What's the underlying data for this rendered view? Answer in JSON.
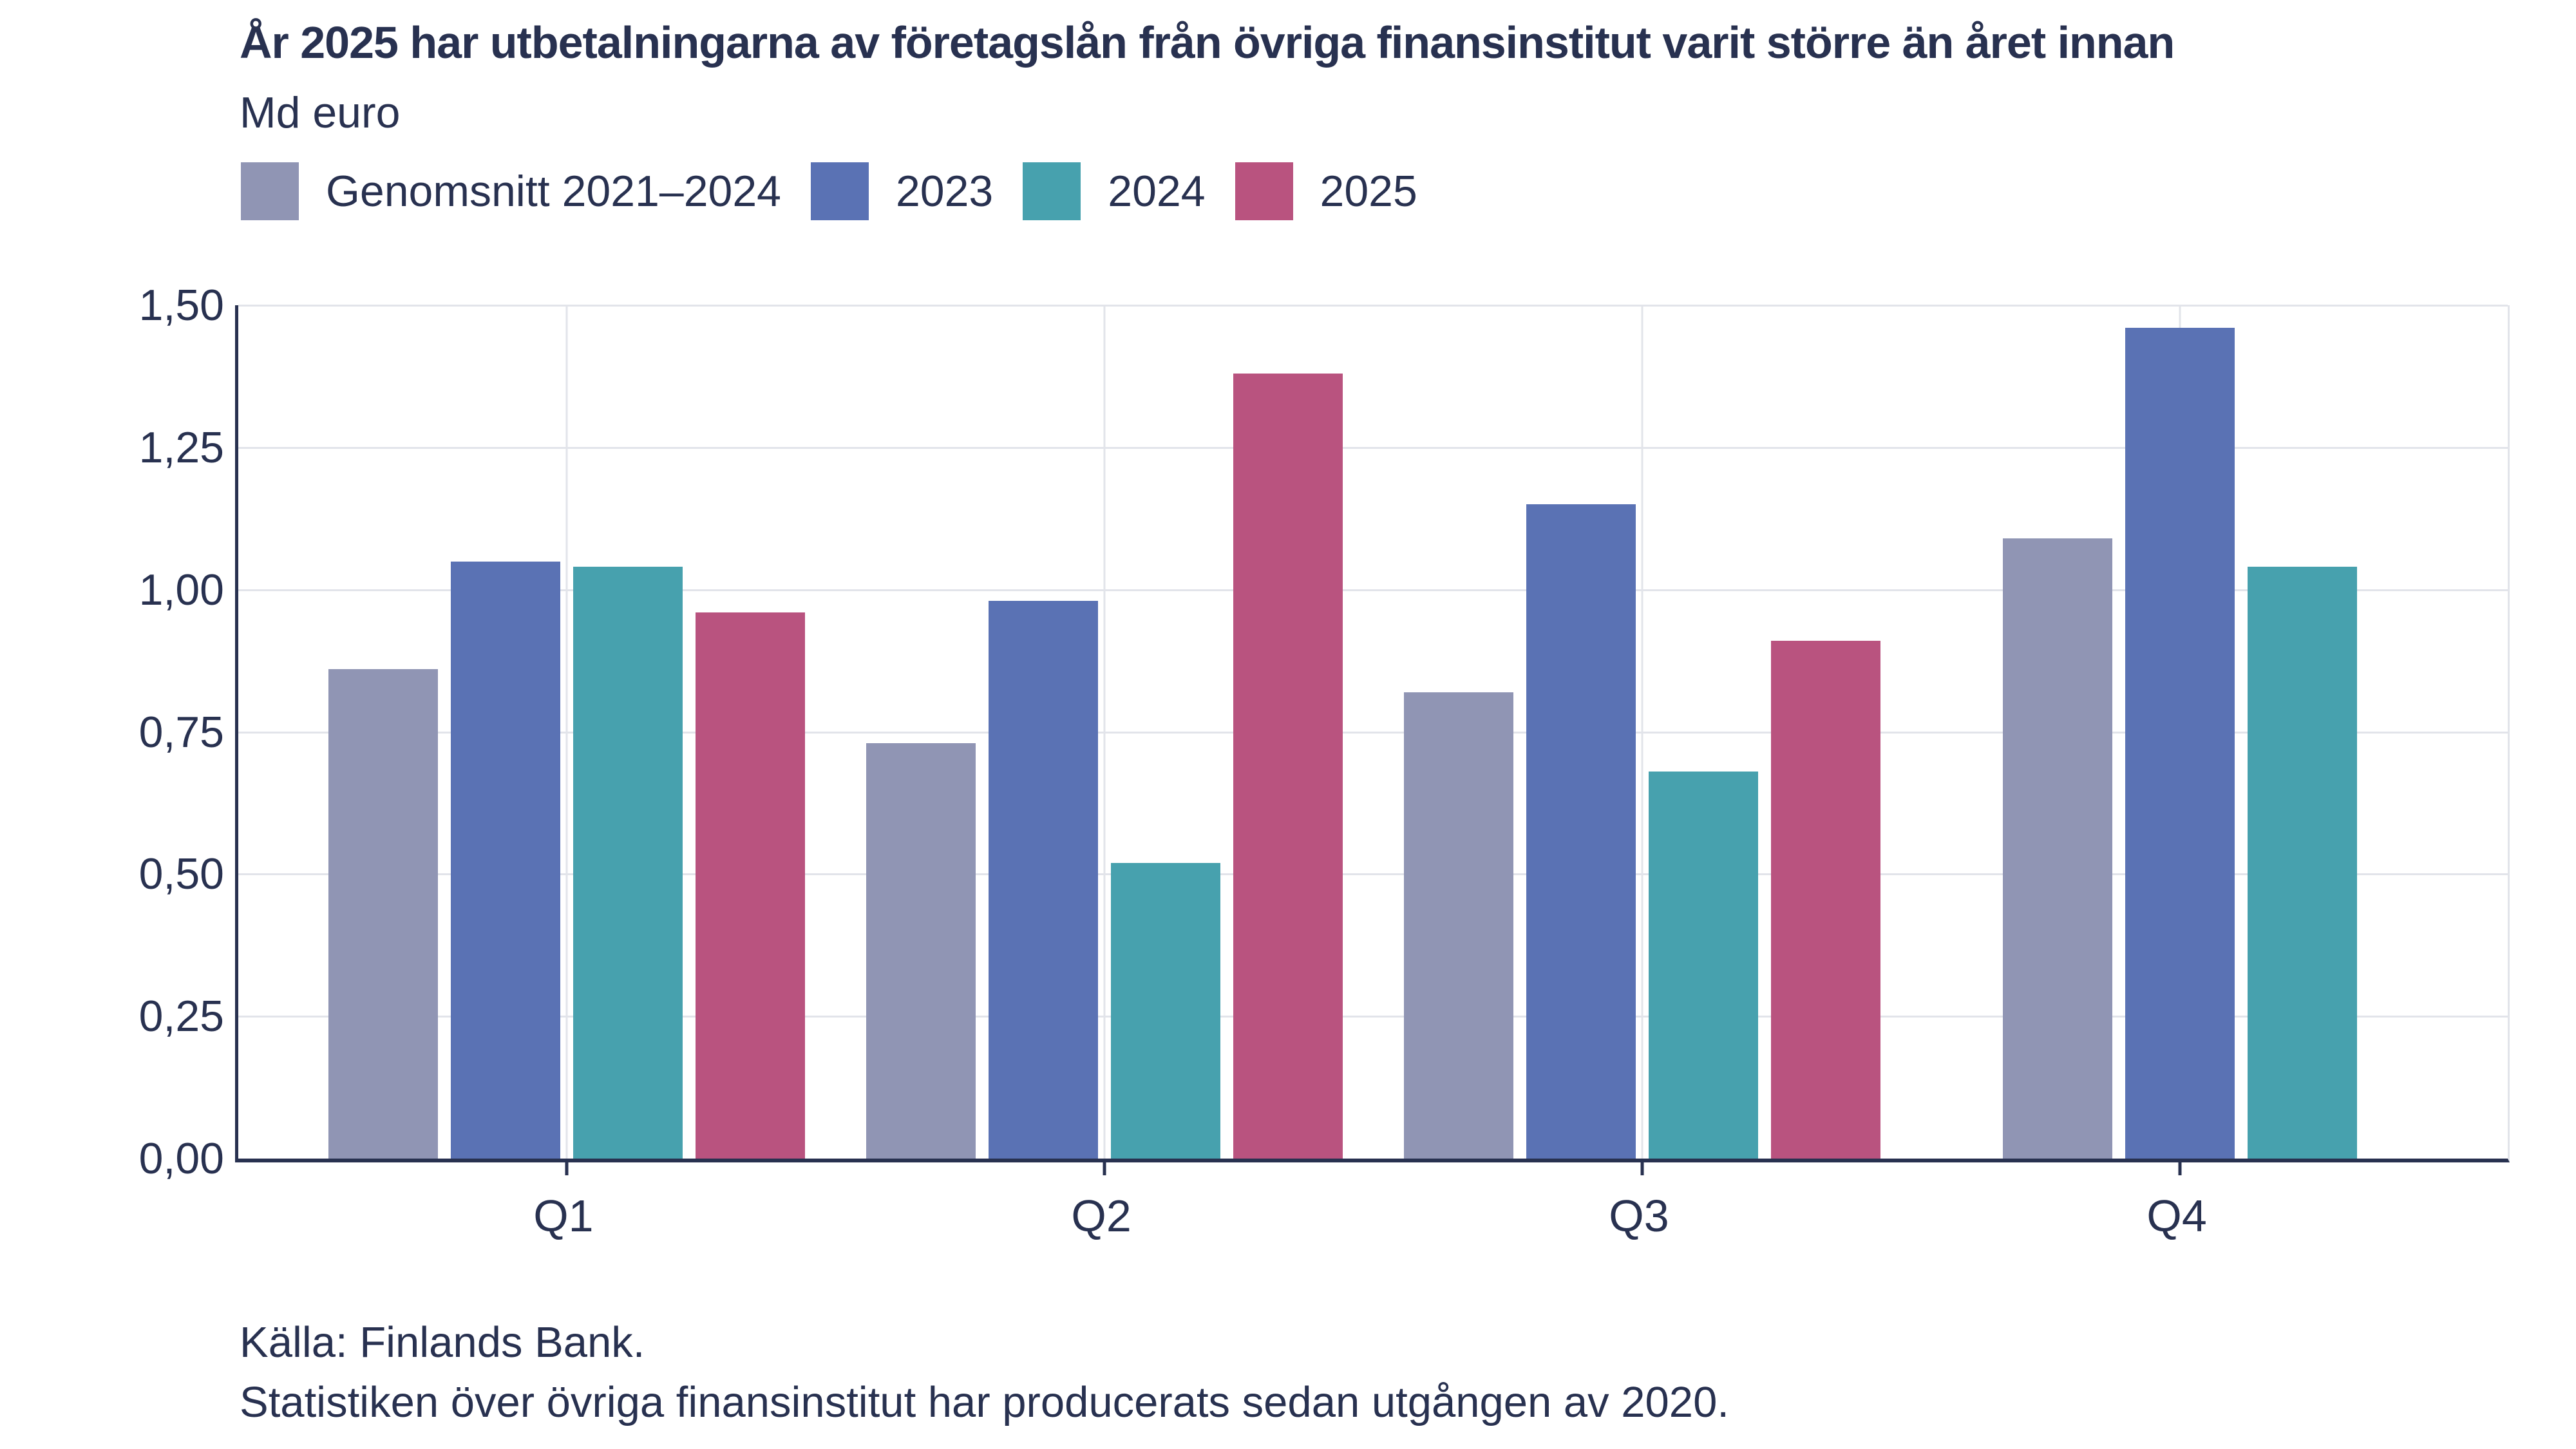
{
  "page": {
    "title": "År 2025 har utbetalningarna av företagslån från övriga finansinstitut varit större än året innan",
    "subtitle": "Md euro",
    "source_line1": "Källa: Finlands Bank.",
    "source_line2": "Statistiken över övriga finansinstitut har producerats sedan utgången av 2020."
  },
  "colors": {
    "text_navy": "#283150",
    "gridline": "#e2e4ea",
    "background": "#ffffff"
  },
  "chart_data": {
    "type": "bar",
    "title": "År 2025 har utbetalningarna av företagslån från övriga finansinstitut varit större än året innan",
    "unit_label": "Md euro",
    "categories": [
      "Q1",
      "Q2",
      "Q3",
      "Q4"
    ],
    "series": [
      {
        "name": "Genomsnitt 2021–2024",
        "color": "#9095b4",
        "values": [
          0.86,
          0.73,
          0.82,
          1.09
        ]
      },
      {
        "name": "2023",
        "color": "#5a72b4",
        "values": [
          1.05,
          0.98,
          1.15,
          1.46
        ]
      },
      {
        "name": "2024",
        "color": "#47a1ae",
        "values": [
          1.04,
          0.52,
          0.68,
          1.04
        ]
      },
      {
        "name": "2025",
        "color": "#b9537f",
        "values": [
          0.96,
          1.38,
          0.91,
          null
        ]
      }
    ],
    "ylim": [
      0,
      1.5
    ],
    "ytick_step": 0.25,
    "ytick_labels": [
      "0,00",
      "0,25",
      "0,50",
      "0,75",
      "1,00",
      "1,25",
      "1,50"
    ],
    "grid": true,
    "legend_position": "top-left",
    "group_center_percents": [
      14.47,
      38.17,
      61.86,
      85.56
    ],
    "source_lines": [
      "Källa: Finlands Bank.",
      "Statistiken över övriga finansinstitut har producerats sedan utgången av 2020."
    ]
  }
}
